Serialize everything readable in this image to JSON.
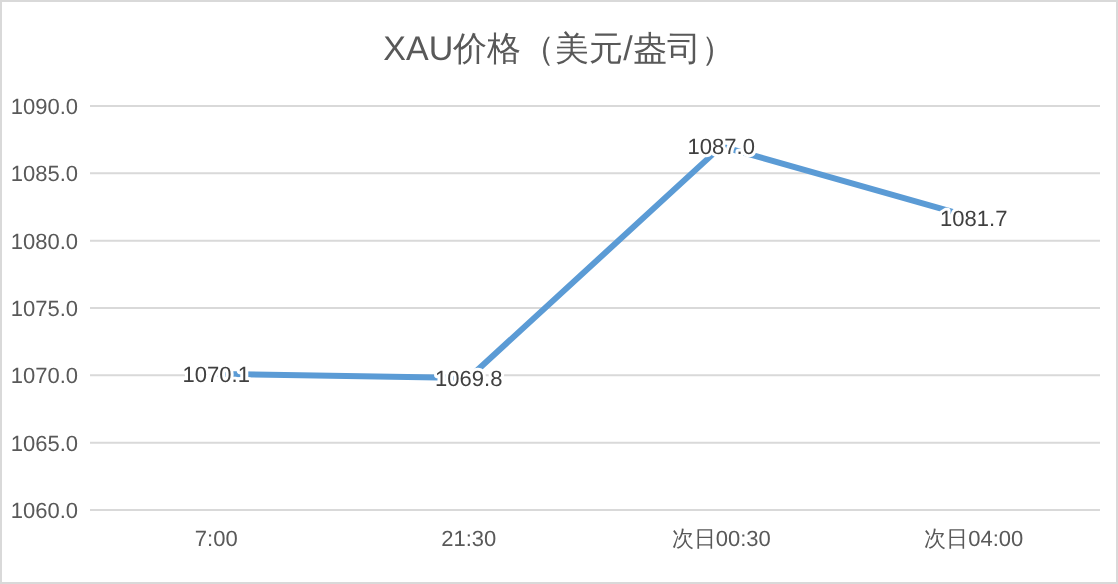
{
  "chart_data": {
    "type": "line",
    "title": "XAU价格（美元/盎司）",
    "categories": [
      "7:00",
      "21:30",
      "次日00:30",
      "次日04:00"
    ],
    "series": [
      {
        "color": "#5b9bd5",
        "values": [
          1070.1,
          1069.8,
          1087.0,
          1081.7
        ],
        "value_labels": [
          "1070.1",
          "1069.8",
          "1087.0",
          "1081.7"
        ]
      }
    ],
    "ylim": [
      1060,
      1090
    ],
    "yticks": [
      {
        "value": 1060,
        "label": "1060.0"
      },
      {
        "value": 1065,
        "label": "1065.0"
      },
      {
        "value": 1070,
        "label": "1070.0"
      },
      {
        "value": 1075,
        "label": "1075.0"
      },
      {
        "value": 1080,
        "label": "1080.0"
      },
      {
        "value": 1085,
        "label": "1085.0"
      },
      {
        "value": 1090,
        "label": "1090.0"
      }
    ],
    "grid": "y",
    "marker": "none",
    "line_style": "solid"
  }
}
